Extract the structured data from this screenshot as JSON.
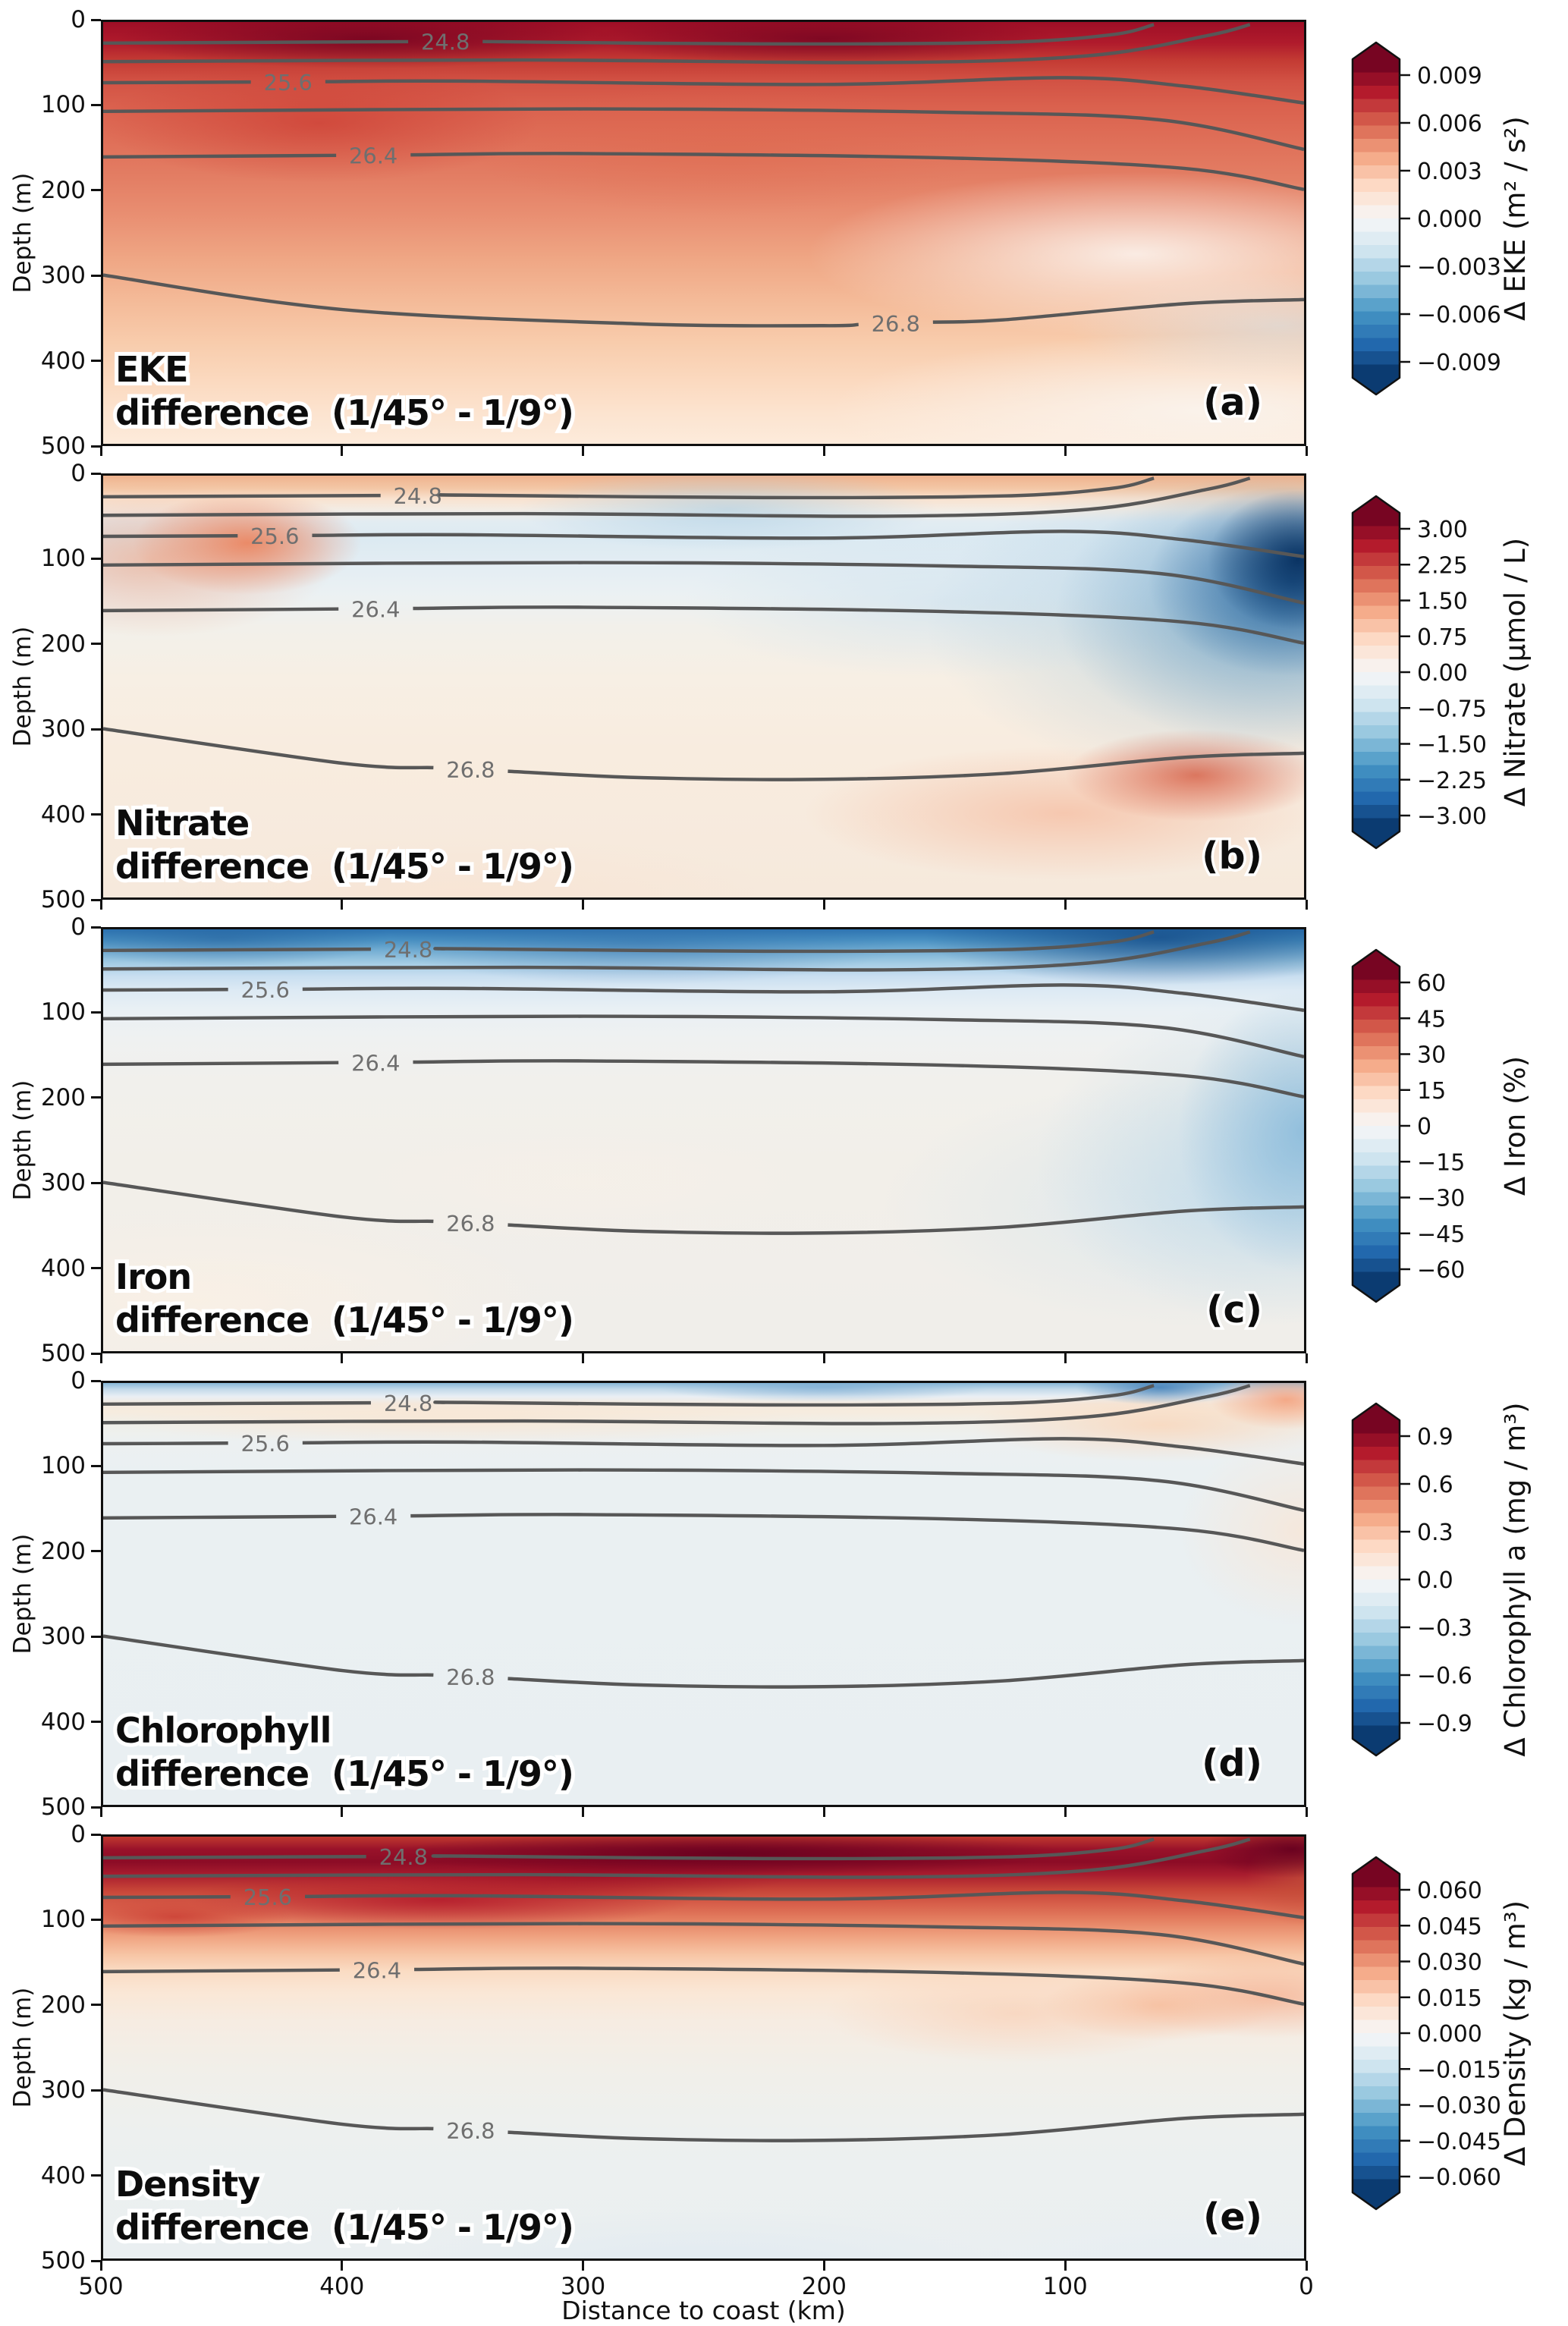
{
  "figure": {
    "x_axis_label": "Distance to coast (km)",
    "x_ticks": [
      "500",
      "400",
      "300",
      "200",
      "100",
      "0"
    ],
    "y_axis_label": "Depth (m)",
    "y_ticks": [
      "0",
      "100",
      "200",
      "300",
      "400",
      "500"
    ],
    "colors": {
      "colormap_top": "#67001f",
      "colormap_zero": "#f7f7f7",
      "colormap_bottom": "#053061",
      "contour_line_gray": "#575757",
      "contour_label_gray": "#6f6f6f"
    }
  },
  "chart_data": [
    {
      "type": "filled_contour_section",
      "panel_letter": "(a)",
      "variable": "EKE",
      "title_line1": "EKE",
      "title_line2": "difference  (1/45° - 1/9°)",
      "x_range_km": [
        500,
        0
      ],
      "depth_range_m": [
        0,
        500
      ],
      "colorbar": {
        "label": "Δ EKE (m² / s²)",
        "tick_labels": [
          "0.009",
          "0.006",
          "0.003",
          "0.000",
          "−0.003",
          "−0.006",
          "−0.009"
        ],
        "tick_values": [
          0.009,
          0.006,
          0.003,
          0.0,
          -0.003,
          -0.006,
          -0.009
        ],
        "colormap": "RdBu_r",
        "extend": "both"
      },
      "isopycnal_contours": {
        "levels_drawn": [
          24.8,
          25.2,
          25.6,
          26.0,
          26.4,
          26.8
        ],
        "labels": [
          {
            "text": "24.8",
            "x": 0.285
          },
          {
            "text": "25.6",
            "x": 0.154
          },
          {
            "text": "26.4",
            "x": 0.225
          },
          {
            "text": "26.8",
            "x": 0.66
          }
        ]
      },
      "field_summary": "Positive EKE anomaly over nearly the whole section; strongest (>0.009 m²/s²) in the upper ~50 m offshore, weakening toward the coast and with depth; near-zero pale band close to the coast below ~100 m."
    },
    {
      "type": "filled_contour_section",
      "panel_letter": "(b)",
      "variable": "Nitrate",
      "title_line1": "Nitrate",
      "title_line2": "difference  (1/45° - 1/9°)",
      "x_range_km": [
        500,
        0
      ],
      "depth_range_m": [
        0,
        500
      ],
      "colorbar": {
        "label": "Δ Nitrate (μmol / L)",
        "tick_labels": [
          "3.00",
          "2.25",
          "1.50",
          "0.75",
          "0.00",
          "−0.75",
          "−1.50",
          "−2.25",
          "−3.00"
        ],
        "tick_values": [
          3.0,
          2.25,
          1.5,
          0.75,
          0.0,
          -0.75,
          -1.5,
          -2.25,
          -3.0
        ],
        "colormap": "RdBu_r",
        "extend": "both"
      },
      "isopycnal_contours": {
        "levels_drawn": [
          24.8,
          25.2,
          25.6,
          26.0,
          26.4,
          26.8
        ],
        "labels": [
          {
            "text": "24.8",
            "x": 0.262
          },
          {
            "text": "25.6",
            "x": 0.143
          },
          {
            "text": "26.4",
            "x": 0.227
          },
          {
            "text": "26.8",
            "x": 0.306
          }
        ]
      },
      "field_summary": "Thin positive band at the surface; weak negative anomaly at 50–200 m offshore with a positive patch near 450–380 km at ~100 m; strong negative anomaly (< −3 μmol/L) at ~50–250 m within ~100 km of the coast; weak positive anomaly below ~250 m, strongest near the coast at ~350–450 m."
    },
    {
      "type": "filled_contour_section",
      "panel_letter": "(c)",
      "variable": "Iron",
      "title_line1": "Iron",
      "title_line2": "difference  (1/45° - 1/9°)",
      "x_range_km": [
        500,
        0
      ],
      "depth_range_m": [
        0,
        500
      ],
      "colorbar": {
        "label": "Δ Iron (%)",
        "tick_labels": [
          "60",
          "45",
          "30",
          "15",
          "0",
          "−15",
          "−30",
          "−45",
          "−60"
        ],
        "tick_values": [
          60,
          45,
          30,
          15,
          0,
          -15,
          -30,
          -45,
          -60
        ],
        "colormap": "RdBu_r",
        "extend": "both"
      },
      "isopycnal_contours": {
        "levels_drawn": [
          24.8,
          25.2,
          25.6,
          26.0,
          26.4,
          26.8
        ],
        "labels": [
          {
            "text": "24.8",
            "x": 0.254
          },
          {
            "text": "25.6",
            "x": 0.135
          },
          {
            "text": "26.4",
            "x": 0.227
          },
          {
            "text": "26.8",
            "x": 0.306
          }
        ]
      },
      "field_summary": "Negative iron anomaly in the upper ~60 m across the whole section (strongest near the coast) and a broad weak negative column within ~150 km of the coast down to ~400 m; very weak positive anomaly elsewhere, mainly in the lower-left of the section."
    },
    {
      "type": "filled_contour_section",
      "panel_letter": "(d)",
      "variable": "Chlorophyll",
      "title_line1": "Chlorophyll",
      "title_line2": "difference  (1/45° - 1/9°)",
      "x_range_km": [
        500,
        0
      ],
      "depth_range_m": [
        0,
        500
      ],
      "colorbar": {
        "label": "Δ Chlorophyll a (mg / m³)",
        "tick_labels": [
          "0.9",
          "0.6",
          "0.3",
          "0.0",
          "−0.3",
          "−0.6",
          "−0.9"
        ],
        "tick_values": [
          0.9,
          0.6,
          0.3,
          0.0,
          -0.3,
          -0.6,
          -0.9
        ],
        "colormap": "RdBu_r",
        "extend": "both"
      },
      "isopycnal_contours": {
        "levels_drawn": [
          24.8,
          25.2,
          25.6,
          26.0,
          26.4,
          26.8
        ],
        "labels": [
          {
            "text": "24.8",
            "x": 0.254
          },
          {
            "text": "25.6",
            "x": 0.135
          },
          {
            "text": "26.4",
            "x": 0.225
          },
          {
            "text": "26.8",
            "x": 0.306
          }
        ]
      },
      "field_summary": "Anomaly close to zero almost everywhere; thin negative (blue) strip at the very surface, weak positive (light orange) bands at ~30–80 m, and a slightly stronger positive wedge in the upper ~150 m next to the coast."
    },
    {
      "type": "filled_contour_section",
      "panel_letter": "(e)",
      "variable": "Density",
      "title_line1": "Density",
      "title_line2": "difference  (1/45° - 1/9°)",
      "x_range_km": [
        500,
        0
      ],
      "depth_range_m": [
        0,
        500
      ],
      "colorbar": {
        "label": "Δ Density (kg / m³)",
        "tick_labels": [
          "0.060",
          "0.045",
          "0.030",
          "0.015",
          "0.000",
          "−0.015",
          "−0.030",
          "−0.045",
          "−0.060"
        ],
        "tick_values": [
          0.06,
          0.045,
          0.03,
          0.015,
          0.0,
          -0.015,
          -0.03,
          -0.045,
          -0.06
        ],
        "colormap": "RdBu_r",
        "extend": "both"
      },
      "isopycnal_contours": {
        "levels_drawn": [
          24.8,
          25.2,
          25.6,
          26.0,
          26.4,
          26.8
        ],
        "labels": [
          {
            "text": "24.8",
            "x": 0.25
          },
          {
            "text": "25.6",
            "x": 0.137
          },
          {
            "text": "26.4",
            "x": 0.228
          },
          {
            "text": "26.8",
            "x": 0.306
          }
        ]
      },
      "field_summary": "Strong positive density anomaly (>0.06 kg/m³) in the upper ~80 m, strongest mid-section and right at the coast, extending to ~150 m on the offshore side; weak positive patches near the coast at ~200–250 m; near-zero to weakly negative below ~300 m."
    }
  ]
}
